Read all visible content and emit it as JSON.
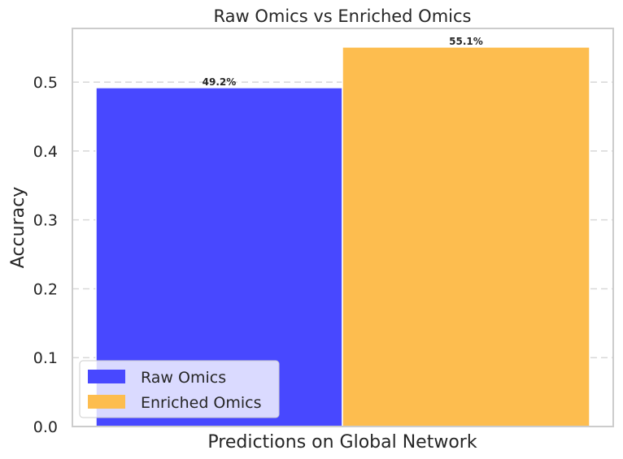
{
  "chart_data": {
    "type": "bar",
    "title": "Raw Omics vs Enriched Omics",
    "xlabel": "Predictions on Global Network",
    "ylabel": "Accuracy",
    "ylim": [
      0,
      0.578
    ],
    "yticks": [
      "0.0",
      "0.1",
      "0.2",
      "0.3",
      "0.4",
      "0.5"
    ],
    "grid": "horizontal dashed",
    "legend_placement": "lower-left",
    "series": [
      {
        "name": "Raw Omics",
        "values": [
          0.492
        ],
        "label": "49.2%",
        "color": "#4848ff"
      },
      {
        "name": "Enriched Omics",
        "values": [
          0.551
        ],
        "label": "55.1%",
        "color": "#fdbd4f"
      }
    ]
  }
}
